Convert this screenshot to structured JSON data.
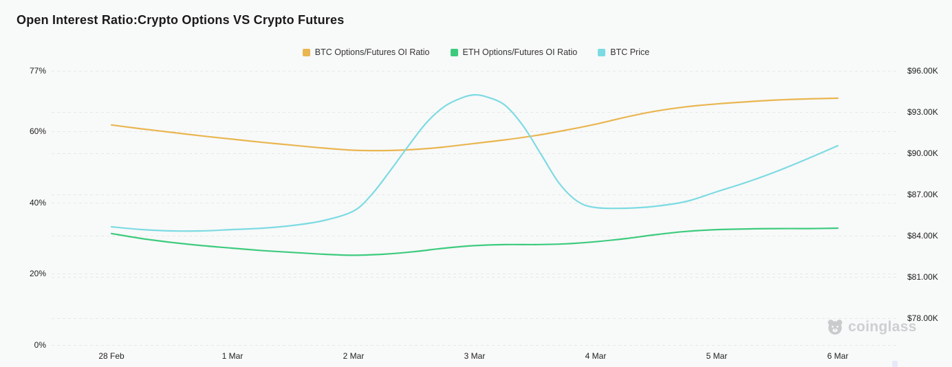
{
  "title": "Open Interest Ratio:Crypto Options VS Crypto Futures",
  "watermark": {
    "brand": "coinglass"
  },
  "chart_data": {
    "type": "line",
    "title": "Open Interest Ratio:Crypto Options VS Crypto Futures",
    "grid": "dashed-horizontal",
    "legend_position": "top-center",
    "x_axis": {
      "tick_labels": [
        "28 Feb",
        "1 Mar",
        "2 Mar",
        "3 Mar",
        "4 Mar",
        "5 Mar",
        "6 Mar"
      ],
      "tick_values": [
        0,
        1,
        2,
        3,
        4,
        5,
        6
      ]
    },
    "left_axis": {
      "unit": "%",
      "min": 0,
      "max": 77,
      "tick_labels": [
        "77%",
        "60%",
        "40%",
        "20%",
        "0%"
      ],
      "tick_values": [
        77,
        60,
        40,
        20,
        0
      ]
    },
    "right_axis": {
      "unit": "USD thousands",
      "min": 78,
      "max": 96,
      "tick_labels": [
        "$96.00K",
        "$93.00K",
        "$90.00K",
        "$87.00K",
        "$84.00K",
        "$81.00K",
        "$78.00K"
      ],
      "tick_values": [
        96,
        93,
        90,
        87,
        84,
        81,
        78
      ]
    },
    "series": [
      {
        "name": "BTC Options/Futures OI Ratio",
        "axis": "left",
        "color": "#E9B64F",
        "points": [
          [
            0,
            61.8
          ],
          [
            0.25,
            60.7
          ],
          [
            0.5,
            59.7
          ],
          [
            0.75,
            58.7
          ],
          [
            1,
            57.8
          ],
          [
            1.25,
            56.9
          ],
          [
            1.5,
            56.1
          ],
          [
            1.75,
            55.3
          ],
          [
            2,
            54.7
          ],
          [
            2.25,
            54.6
          ],
          [
            2.5,
            54.9
          ],
          [
            2.75,
            55.6
          ],
          [
            3,
            56.6
          ],
          [
            3.25,
            57.6
          ],
          [
            3.5,
            58.8
          ],
          [
            3.75,
            60.3
          ],
          [
            4,
            62.0
          ],
          [
            4.25,
            64.0
          ],
          [
            4.5,
            65.7
          ],
          [
            4.75,
            66.9
          ],
          [
            5,
            67.7
          ],
          [
            5.25,
            68.3
          ],
          [
            5.5,
            68.8
          ],
          [
            5.75,
            69.1
          ],
          [
            6,
            69.3
          ]
        ]
      },
      {
        "name": "ETH Options/Futures OI Ratio",
        "axis": "left",
        "color": "#3CCB7D",
        "points": [
          [
            0,
            31.3
          ],
          [
            0.25,
            29.9
          ],
          [
            0.5,
            28.8
          ],
          [
            0.75,
            27.9
          ],
          [
            1,
            27.2
          ],
          [
            1.25,
            26.5
          ],
          [
            1.5,
            26.0
          ],
          [
            1.75,
            25.5
          ],
          [
            2,
            25.2
          ],
          [
            2.25,
            25.5
          ],
          [
            2.5,
            26.2
          ],
          [
            2.75,
            27.2
          ],
          [
            3,
            27.9
          ],
          [
            3.25,
            28.2
          ],
          [
            3.5,
            28.2
          ],
          [
            3.75,
            28.4
          ],
          [
            4,
            29.0
          ],
          [
            4.25,
            29.9
          ],
          [
            4.5,
            31.0
          ],
          [
            4.75,
            31.9
          ],
          [
            5,
            32.4
          ],
          [
            5.25,
            32.6
          ],
          [
            5.5,
            32.7
          ],
          [
            5.75,
            32.7
          ],
          [
            6,
            32.8
          ]
        ]
      },
      {
        "name": "BTC Price",
        "axis": "right",
        "color": "#7CDBE2",
        "points": [
          [
            0,
            84.65
          ],
          [
            0.25,
            84.45
          ],
          [
            0.5,
            84.35
          ],
          [
            0.75,
            84.35
          ],
          [
            1,
            84.45
          ],
          [
            1.25,
            84.55
          ],
          [
            1.5,
            84.75
          ],
          [
            1.75,
            85.1
          ],
          [
            2,
            85.8
          ],
          [
            2.15,
            87.0
          ],
          [
            2.3,
            88.7
          ],
          [
            2.45,
            90.5
          ],
          [
            2.6,
            92.2
          ],
          [
            2.75,
            93.4
          ],
          [
            2.9,
            94.05
          ],
          [
            3,
            94.25
          ],
          [
            3.1,
            94.1
          ],
          [
            3.25,
            93.5
          ],
          [
            3.4,
            92.0
          ],
          [
            3.55,
            89.9
          ],
          [
            3.7,
            87.8
          ],
          [
            3.85,
            86.5
          ],
          [
            4,
            86.05
          ],
          [
            4.25,
            86.0
          ],
          [
            4.5,
            86.15
          ],
          [
            4.75,
            86.5
          ],
          [
            5,
            87.2
          ],
          [
            5.25,
            87.9
          ],
          [
            5.5,
            88.7
          ],
          [
            5.75,
            89.6
          ],
          [
            6,
            90.55
          ]
        ]
      }
    ]
  }
}
